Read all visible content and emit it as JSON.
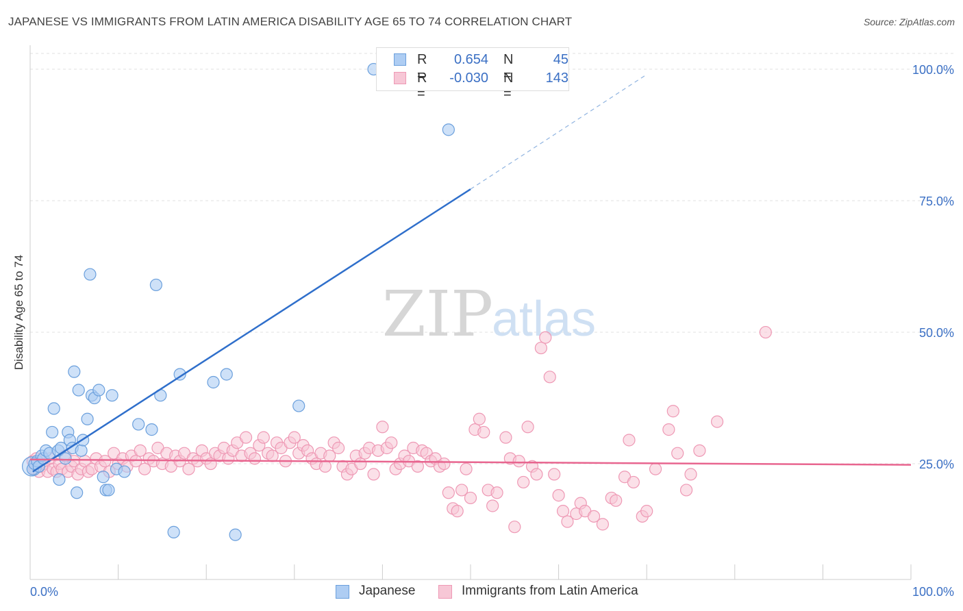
{
  "header": {
    "title": "JAPANESE VS IMMIGRANTS FROM LATIN AMERICA DISABILITY AGE 65 TO 74 CORRELATION CHART",
    "source": "Source: ZipAtlas.com"
  },
  "watermark": {
    "zip": "ZIP",
    "atlas": "atlas"
  },
  "legend": {
    "rows": [
      {
        "r_label": "R =",
        "r_value": "0.654",
        "n_label": "N =",
        "n_value": "45",
        "color": "#7fb0e8"
      },
      {
        "r_label": "R =",
        "r_value": "-0.030",
        "n_label": "N =",
        "n_value": "143",
        "color": "#f2a3bd"
      }
    ]
  },
  "bottom_legend": {
    "items": [
      {
        "label": "Japanese",
        "color": "#7fb0e8"
      },
      {
        "label": "Immigrants from Latin America",
        "color": "#f2a3bd"
      }
    ]
  },
  "chart_data": {
    "type": "scatter",
    "title": "JAPANESE VS IMMIGRANTS FROM LATIN AMERICA DISABILITY AGE 65 TO 74 CORRELATION CHART",
    "xlabel": "",
    "ylabel": "Disability Age 65 to 74",
    "xlim": [
      0,
      100
    ],
    "ylim": [
      3,
      103
    ],
    "x_tick_labels": [
      "0.0%",
      "100.0%"
    ],
    "y_ticks": [
      25,
      50,
      75,
      100
    ],
    "y_tick_labels": [
      "25.0%",
      "50.0%",
      "75.0%",
      "100.0%"
    ],
    "grid": true,
    "legend_position": "top-center",
    "colors": {
      "japanese_fill": "#aecdf3",
      "japanese_stroke": "#6a9fdc",
      "japanese_line": "#2f6fcb",
      "latin_fill": "#f7c7d6",
      "latin_stroke": "#ee98b4",
      "latin_line": "#e8658f",
      "tick_label": "#3a6fc4"
    },
    "series": [
      {
        "name": "Japanese",
        "trend": {
          "x": [
            0.3,
            50.0
          ],
          "y": [
            23.5,
            77.2
          ],
          "extended_to": [
            70.0,
            99.0
          ]
        },
        "points": [
          [
            0.3,
            24.0
          ],
          [
            0.5,
            25.0
          ],
          [
            0.8,
            25.5
          ],
          [
            1.0,
            24.5
          ],
          [
            1.3,
            26.5
          ],
          [
            1.5,
            26.0
          ],
          [
            1.8,
            27.5
          ],
          [
            2.2,
            27.0
          ],
          [
            2.5,
            31.0
          ],
          [
            2.7,
            35.5
          ],
          [
            3.2,
            27.5
          ],
          [
            3.3,
            22.0
          ],
          [
            3.5,
            28.0
          ],
          [
            4.0,
            26.0
          ],
          [
            4.3,
            31.0
          ],
          [
            4.5,
            29.5
          ],
          [
            4.8,
            28.0
          ],
          [
            5.0,
            42.5
          ],
          [
            5.3,
            19.5
          ],
          [
            5.5,
            39.0
          ],
          [
            5.8,
            27.5
          ],
          [
            6.0,
            29.5
          ],
          [
            6.5,
            33.5
          ],
          [
            6.8,
            61.0
          ],
          [
            7.0,
            38.0
          ],
          [
            7.3,
            37.5
          ],
          [
            7.8,
            39.0
          ],
          [
            8.3,
            22.5
          ],
          [
            8.6,
            20.0
          ],
          [
            8.9,
            20.0
          ],
          [
            9.3,
            38.0
          ],
          [
            9.8,
            24.0
          ],
          [
            10.7,
            23.5
          ],
          [
            12.3,
            32.5
          ],
          [
            13.8,
            31.5
          ],
          [
            14.3,
            59.0
          ],
          [
            14.8,
            38.0
          ],
          [
            16.3,
            12.0
          ],
          [
            17.0,
            42.0
          ],
          [
            20.8,
            40.5
          ],
          [
            22.3,
            42.0
          ],
          [
            23.3,
            11.5
          ],
          [
            30.5,
            36.0
          ],
          [
            39.0,
            100.0
          ],
          [
            47.5,
            88.5
          ]
        ]
      },
      {
        "name": "Immigrants from Latin America",
        "trend": {
          "x": [
            0,
            100
          ],
          "y": [
            25.8,
            24.8
          ]
        },
        "points": [
          [
            0.3,
            25.5
          ],
          [
            0.5,
            24.0
          ],
          [
            0.7,
            26.0
          ],
          [
            1.0,
            23.5
          ],
          [
            1.3,
            24.5
          ],
          [
            1.6,
            25.0
          ],
          [
            2.0,
            23.5
          ],
          [
            2.3,
            26.0
          ],
          [
            2.6,
            24.0
          ],
          [
            3.0,
            23.5
          ],
          [
            3.3,
            25.0
          ],
          [
            3.6,
            24.0
          ],
          [
            4.0,
            26.5
          ],
          [
            4.3,
            23.5
          ],
          [
            4.7,
            24.5
          ],
          [
            5.0,
            25.5
          ],
          [
            5.4,
            23.0
          ],
          [
            5.8,
            24.0
          ],
          [
            6.2,
            25.5
          ],
          [
            6.6,
            23.5
          ],
          [
            7.0,
            24.0
          ],
          [
            7.5,
            26.0
          ],
          [
            8.0,
            24.5
          ],
          [
            8.5,
            25.5
          ],
          [
            9.0,
            23.5
          ],
          [
            9.5,
            27.0
          ],
          [
            10.0,
            25.0
          ],
          [
            10.5,
            26.0
          ],
          [
            11.0,
            24.5
          ],
          [
            11.5,
            26.5
          ],
          [
            12.0,
            25.5
          ],
          [
            12.5,
            27.5
          ],
          [
            13.0,
            24.0
          ],
          [
            13.5,
            26.0
          ],
          [
            14.0,
            25.5
          ],
          [
            14.5,
            28.0
          ],
          [
            15.0,
            25.0
          ],
          [
            15.5,
            27.0
          ],
          [
            16.0,
            24.5
          ],
          [
            16.5,
            26.5
          ],
          [
            17.0,
            25.5
          ],
          [
            17.5,
            27.0
          ],
          [
            18.0,
            24.0
          ],
          [
            18.5,
            26.0
          ],
          [
            19.0,
            25.5
          ],
          [
            19.5,
            27.5
          ],
          [
            20.0,
            26.0
          ],
          [
            20.5,
            25.0
          ],
          [
            21.0,
            27.0
          ],
          [
            21.5,
            26.5
          ],
          [
            22.0,
            28.0
          ],
          [
            22.5,
            26.0
          ],
          [
            23.0,
            27.5
          ],
          [
            23.5,
            29.0
          ],
          [
            24.0,
            26.5
          ],
          [
            24.5,
            30.0
          ],
          [
            25.0,
            27.0
          ],
          [
            25.5,
            26.0
          ],
          [
            26.0,
            28.5
          ],
          [
            26.5,
            30.0
          ],
          [
            27.0,
            27.0
          ],
          [
            27.5,
            26.5
          ],
          [
            28.0,
            29.0
          ],
          [
            28.5,
            28.0
          ],
          [
            29.0,
            25.5
          ],
          [
            29.5,
            29.0
          ],
          [
            30.0,
            30.0
          ],
          [
            30.5,
            27.0
          ],
          [
            31.0,
            28.5
          ],
          [
            31.5,
            27.5
          ],
          [
            32.0,
            26.0
          ],
          [
            32.5,
            25.0
          ],
          [
            33.0,
            27.0
          ],
          [
            33.5,
            24.5
          ],
          [
            34.0,
            26.5
          ],
          [
            34.5,
            29.0
          ],
          [
            35.0,
            28.0
          ],
          [
            35.5,
            24.5
          ],
          [
            36.0,
            23.0
          ],
          [
            36.5,
            24.0
          ],
          [
            37.0,
            26.5
          ],
          [
            37.5,
            25.0
          ],
          [
            38.0,
            27.0
          ],
          [
            38.5,
            28.0
          ],
          [
            39.0,
            23.0
          ],
          [
            39.5,
            27.5
          ],
          [
            40.0,
            32.0
          ],
          [
            40.5,
            28.0
          ],
          [
            41.0,
            29.0
          ],
          [
            41.5,
            24.0
          ],
          [
            42.0,
            25.0
          ],
          [
            42.5,
            26.5
          ],
          [
            43.0,
            25.5
          ],
          [
            43.5,
            28.0
          ],
          [
            44.0,
            24.5
          ],
          [
            44.5,
            27.5
          ],
          [
            45.0,
            27.0
          ],
          [
            45.5,
            25.5
          ],
          [
            46.0,
            26.0
          ],
          [
            46.5,
            24.5
          ],
          [
            47.0,
            25.0
          ],
          [
            47.5,
            19.5
          ],
          [
            48.0,
            16.5
          ],
          [
            48.5,
            16.0
          ],
          [
            49.0,
            20.0
          ],
          [
            49.5,
            24.0
          ],
          [
            50.0,
            18.5
          ],
          [
            50.5,
            31.5
          ],
          [
            51.0,
            33.5
          ],
          [
            51.5,
            31.0
          ],
          [
            52.0,
            20.0
          ],
          [
            52.5,
            17.0
          ],
          [
            53.0,
            19.5
          ],
          [
            54.0,
            30.0
          ],
          [
            54.5,
            26.0
          ],
          [
            55.0,
            13.0
          ],
          [
            55.5,
            25.5
          ],
          [
            56.0,
            21.5
          ],
          [
            56.5,
            32.0
          ],
          [
            57.0,
            24.5
          ],
          [
            57.5,
            23.0
          ],
          [
            58.0,
            47.0
          ],
          [
            58.5,
            49.0
          ],
          [
            59.0,
            41.5
          ],
          [
            59.5,
            23.0
          ],
          [
            60.0,
            19.0
          ],
          [
            60.5,
            16.0
          ],
          [
            61.0,
            14.0
          ],
          [
            62.0,
            15.5
          ],
          [
            62.5,
            17.5
          ],
          [
            63.0,
            16.0
          ],
          [
            64.0,
            15.0
          ],
          [
            65.0,
            13.5
          ],
          [
            66.0,
            18.5
          ],
          [
            66.5,
            18.0
          ],
          [
            67.5,
            22.5
          ],
          [
            68.0,
            29.5
          ],
          [
            68.5,
            21.5
          ],
          [
            69.5,
            15.0
          ],
          [
            70.0,
            16.0
          ],
          [
            71.0,
            24.0
          ],
          [
            72.5,
            31.5
          ],
          [
            73.0,
            35.0
          ],
          [
            73.5,
            27.0
          ],
          [
            74.5,
            20.0
          ],
          [
            75.0,
            23.0
          ],
          [
            76.0,
            27.5
          ],
          [
            78.0,
            33.0
          ],
          [
            83.5,
            50.0
          ]
        ]
      }
    ]
  }
}
